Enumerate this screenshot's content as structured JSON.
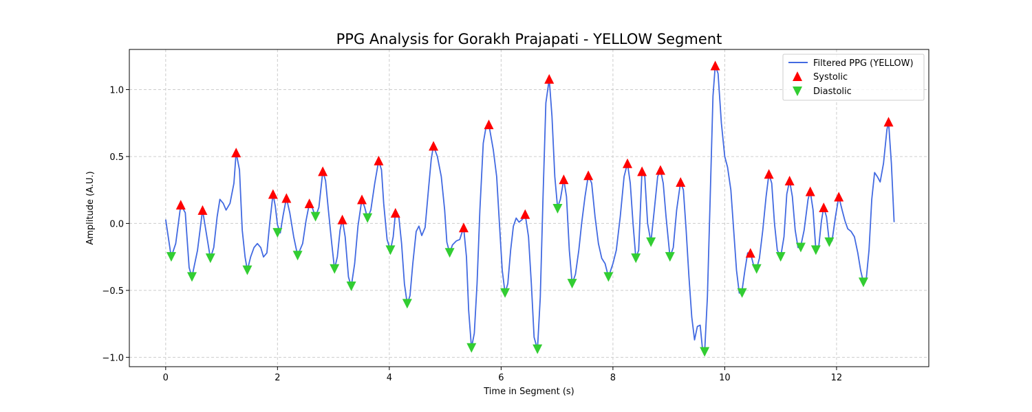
{
  "chart_data": {
    "type": "line",
    "title": "PPG Analysis for Gorakh Prajapati - YELLOW Segment",
    "xlabel": "Time in Segment (s)",
    "ylabel": "Amplitude (A.U.)",
    "xlim": [
      -0.65,
      13.65
    ],
    "ylim": [
      -1.07,
      1.3
    ],
    "x_ticks": [
      0,
      2,
      4,
      6,
      8,
      10,
      12
    ],
    "y_ticks": [
      -1.0,
      -0.5,
      0.0,
      0.5,
      1.0
    ],
    "x_tick_labels": [
      "0",
      "2",
      "4",
      "6",
      "8",
      "10",
      "12"
    ],
    "y_tick_labels": [
      "−1.0",
      "−0.5",
      "0.0",
      "0.5",
      "1.0"
    ],
    "grid": true,
    "legend_position": "top-right",
    "legend": [
      "Filtered PPG (YELLOW)",
      "Systolic",
      "Diastolic"
    ],
    "colors": {
      "line": "#4169e1",
      "systolic": "#ff0000",
      "diastolic": "#32cd32"
    },
    "series": [
      {
        "name": "Filtered PPG (YELLOW)",
        "marker": "line",
        "points": [
          [
            0.0,
            0.03
          ],
          [
            0.1,
            -0.25
          ],
          [
            0.18,
            -0.15
          ],
          [
            0.27,
            0.14
          ],
          [
            0.35,
            0.08
          ],
          [
            0.42,
            -0.33
          ],
          [
            0.47,
            -0.4
          ],
          [
            0.57,
            -0.2
          ],
          [
            0.66,
            0.1
          ],
          [
            0.73,
            -0.08
          ],
          [
            0.8,
            -0.26
          ],
          [
            0.86,
            -0.18
          ],
          [
            0.92,
            0.05
          ],
          [
            0.97,
            0.18
          ],
          [
            1.03,
            0.15
          ],
          [
            1.08,
            0.1
          ],
          [
            1.15,
            0.15
          ],
          [
            1.22,
            0.3
          ],
          [
            1.26,
            0.53
          ],
          [
            1.32,
            0.4
          ],
          [
            1.37,
            -0.05
          ],
          [
            1.42,
            -0.25
          ],
          [
            1.46,
            -0.35
          ],
          [
            1.52,
            -0.25
          ],
          [
            1.58,
            -0.18
          ],
          [
            1.64,
            -0.15
          ],
          [
            1.7,
            -0.18
          ],
          [
            1.75,
            -0.25
          ],
          [
            1.81,
            -0.22
          ],
          [
            1.86,
            0.0
          ],
          [
            1.92,
            0.22
          ],
          [
            1.96,
            0.13
          ],
          [
            2.0,
            -0.01
          ],
          [
            2.05,
            -0.07
          ],
          [
            2.1,
            0.06
          ],
          [
            2.16,
            0.19
          ],
          [
            2.22,
            0.08
          ],
          [
            2.29,
            -0.1
          ],
          [
            2.36,
            -0.24
          ],
          [
            2.45,
            -0.15
          ],
          [
            2.51,
            0.02
          ],
          [
            2.57,
            0.15
          ],
          [
            2.62,
            0.12
          ],
          [
            2.68,
            0.05
          ],
          [
            2.74,
            0.12
          ],
          [
            2.81,
            0.39
          ],
          [
            2.86,
            0.32
          ],
          [
            2.91,
            0.1
          ],
          [
            2.97,
            -0.15
          ],
          [
            3.02,
            -0.34
          ],
          [
            3.07,
            -0.25
          ],
          [
            3.12,
            -0.05
          ],
          [
            3.16,
            0.03
          ],
          [
            3.21,
            -0.1
          ],
          [
            3.27,
            -0.4
          ],
          [
            3.32,
            -0.47
          ],
          [
            3.38,
            -0.3
          ],
          [
            3.44,
            -0.02
          ],
          [
            3.51,
            0.18
          ],
          [
            3.56,
            0.12
          ],
          [
            3.61,
            0.04
          ],
          [
            3.67,
            0.1
          ],
          [
            3.74,
            0.3
          ],
          [
            3.81,
            0.47
          ],
          [
            3.86,
            0.4
          ],
          [
            3.9,
            0.15
          ],
          [
            3.96,
            -0.12
          ],
          [
            4.02,
            -0.2
          ],
          [
            4.07,
            -0.1
          ],
          [
            4.11,
            0.08
          ],
          [
            4.17,
            0.05
          ],
          [
            4.22,
            -0.15
          ],
          [
            4.27,
            -0.45
          ],
          [
            4.32,
            -0.6
          ],
          [
            4.37,
            -0.54
          ],
          [
            4.42,
            -0.3
          ],
          [
            4.48,
            -0.06
          ],
          [
            4.53,
            -0.02
          ],
          [
            4.58,
            -0.09
          ],
          [
            4.64,
            -0.03
          ],
          [
            4.7,
            0.25
          ],
          [
            4.75,
            0.48
          ],
          [
            4.79,
            0.58
          ],
          [
            4.86,
            0.5
          ],
          [
            4.93,
            0.35
          ],
          [
            4.99,
            0.1
          ],
          [
            5.03,
            -0.14
          ],
          [
            5.08,
            -0.22
          ],
          [
            5.13,
            -0.16
          ],
          [
            5.2,
            -0.13
          ],
          [
            5.26,
            -0.12
          ],
          [
            5.33,
            -0.03
          ],
          [
            5.38,
            -0.25
          ],
          [
            5.42,
            -0.65
          ],
          [
            5.47,
            -0.93
          ],
          [
            5.52,
            -0.82
          ],
          [
            5.57,
            -0.45
          ],
          [
            5.62,
            0.1
          ],
          [
            5.68,
            0.6
          ],
          [
            5.73,
            0.72
          ],
          [
            5.78,
            0.74
          ],
          [
            5.86,
            0.55
          ],
          [
            5.92,
            0.35
          ],
          [
            5.97,
            0.0
          ],
          [
            6.02,
            -0.35
          ],
          [
            6.07,
            -0.52
          ],
          [
            6.12,
            -0.45
          ],
          [
            6.17,
            -0.2
          ],
          [
            6.22,
            -0.02
          ],
          [
            6.27,
            0.04
          ],
          [
            6.32,
            0.01
          ],
          [
            6.38,
            0.03
          ],
          [
            6.43,
            0.07
          ],
          [
            6.49,
            -0.1
          ],
          [
            6.54,
            -0.45
          ],
          [
            6.59,
            -0.85
          ],
          [
            6.65,
            -0.94
          ],
          [
            6.7,
            -0.55
          ],
          [
            6.75,
            0.2
          ],
          [
            6.8,
            0.9
          ],
          [
            6.86,
            1.08
          ],
          [
            6.91,
            0.8
          ],
          [
            6.96,
            0.35
          ],
          [
            7.01,
            0.12
          ],
          [
            7.06,
            0.18
          ],
          [
            7.12,
            0.33
          ],
          [
            7.17,
            0.2
          ],
          [
            7.22,
            -0.2
          ],
          [
            7.27,
            -0.45
          ],
          [
            7.33,
            -0.38
          ],
          [
            7.39,
            -0.2
          ],
          [
            7.44,
            0.0
          ],
          [
            7.5,
            0.2
          ],
          [
            7.56,
            0.36
          ],
          [
            7.62,
            0.3
          ],
          [
            7.68,
            0.05
          ],
          [
            7.74,
            -0.15
          ],
          [
            7.8,
            -0.26
          ],
          [
            7.86,
            -0.3
          ],
          [
            7.92,
            -0.4
          ],
          [
            8.0,
            -0.3
          ],
          [
            8.06,
            -0.2
          ],
          [
            8.13,
            0.05
          ],
          [
            8.2,
            0.35
          ],
          [
            8.26,
            0.45
          ],
          [
            8.31,
            0.3
          ],
          [
            8.36,
            0.0
          ],
          [
            8.41,
            -0.26
          ],
          [
            8.46,
            -0.2
          ],
          [
            8.52,
            0.39
          ],
          [
            8.57,
            0.35
          ],
          [
            8.62,
            0.0
          ],
          [
            8.68,
            -0.14
          ],
          [
            8.74,
            0.1
          ],
          [
            8.8,
            0.35
          ],
          [
            8.85,
            0.4
          ],
          [
            8.9,
            0.3
          ],
          [
            8.95,
            0.05
          ],
          [
            9.02,
            -0.25
          ],
          [
            9.08,
            -0.18
          ],
          [
            9.14,
            0.1
          ],
          [
            9.21,
            0.31
          ],
          [
            9.26,
            0.25
          ],
          [
            9.31,
            -0.05
          ],
          [
            9.36,
            -0.4
          ],
          [
            9.41,
            -0.7
          ],
          [
            9.46,
            -0.87
          ],
          [
            9.51,
            -0.77
          ],
          [
            9.56,
            -0.76
          ],
          [
            9.6,
            -0.93
          ],
          [
            9.64,
            -0.96
          ],
          [
            9.69,
            -0.55
          ],
          [
            9.74,
            0.2
          ],
          [
            9.79,
            0.95
          ],
          [
            9.83,
            1.18
          ],
          [
            9.88,
            1.12
          ],
          [
            9.94,
            0.75
          ],
          [
            10.0,
            0.5
          ],
          [
            10.05,
            0.42
          ],
          [
            10.11,
            0.25
          ],
          [
            10.16,
            -0.05
          ],
          [
            10.21,
            -0.35
          ],
          [
            10.26,
            -0.52
          ],
          [
            10.31,
            -0.5
          ],
          [
            10.36,
            -0.35
          ],
          [
            10.41,
            -0.22
          ],
          [
            10.46,
            -0.22
          ],
          [
            10.52,
            -0.32
          ],
          [
            10.57,
            -0.34
          ],
          [
            10.62,
            -0.26
          ],
          [
            10.68,
            -0.05
          ],
          [
            10.74,
            0.2
          ],
          [
            10.79,
            0.37
          ],
          [
            10.84,
            0.3
          ],
          [
            10.89,
            0.0
          ],
          [
            10.94,
            -0.2
          ],
          [
            11.0,
            -0.25
          ],
          [
            11.06,
            -0.1
          ],
          [
            11.11,
            0.22
          ],
          [
            11.16,
            0.32
          ],
          [
            11.21,
            0.2
          ],
          [
            11.26,
            -0.05
          ],
          [
            11.31,
            -0.18
          ],
          [
            11.36,
            -0.17
          ],
          [
            11.42,
            -0.05
          ],
          [
            11.49,
            0.18
          ],
          [
            11.53,
            0.24
          ],
          [
            11.58,
            0.1
          ],
          [
            11.63,
            -0.2
          ],
          [
            11.68,
            -0.18
          ],
          [
            11.73,
            0.02
          ],
          [
            11.77,
            0.12
          ],
          [
            11.82,
            0.05
          ],
          [
            11.87,
            -0.14
          ],
          [
            11.92,
            -0.13
          ],
          [
            11.98,
            0.05
          ],
          [
            12.04,
            0.2
          ],
          [
            12.1,
            0.1
          ],
          [
            12.15,
            0.02
          ],
          [
            12.2,
            -0.04
          ],
          [
            12.26,
            -0.06
          ],
          [
            12.32,
            -0.1
          ],
          [
            12.38,
            -0.22
          ],
          [
            12.43,
            -0.35
          ],
          [
            12.48,
            -0.44
          ],
          [
            12.53,
            -0.42
          ],
          [
            12.58,
            -0.2
          ],
          [
            12.63,
            0.18
          ],
          [
            12.68,
            0.38
          ],
          [
            12.73,
            0.35
          ],
          [
            12.78,
            0.31
          ],
          [
            12.84,
            0.45
          ],
          [
            12.9,
            0.7
          ],
          [
            12.93,
            0.76
          ],
          [
            12.98,
            0.45
          ],
          [
            13.03,
            0.01
          ]
        ]
      },
      {
        "name": "Systolic",
        "marker": "triangle-up",
        "points": [
          [
            0.27,
            0.14
          ],
          [
            0.66,
            0.1
          ],
          [
            1.26,
            0.53
          ],
          [
            1.92,
            0.22
          ],
          [
            2.16,
            0.19
          ],
          [
            2.57,
            0.15
          ],
          [
            2.81,
            0.39
          ],
          [
            3.16,
            0.03
          ],
          [
            3.51,
            0.18
          ],
          [
            3.81,
            0.47
          ],
          [
            4.11,
            0.08
          ],
          [
            4.79,
            0.58
          ],
          [
            5.33,
            -0.03
          ],
          [
            5.78,
            0.74
          ],
          [
            6.43,
            0.07
          ],
          [
            6.86,
            1.08
          ],
          [
            7.12,
            0.33
          ],
          [
            7.56,
            0.36
          ],
          [
            8.26,
            0.45
          ],
          [
            8.52,
            0.39
          ],
          [
            8.85,
            0.4
          ],
          [
            9.21,
            0.31
          ],
          [
            9.83,
            1.18
          ],
          [
            10.46,
            -0.22
          ],
          [
            10.79,
            0.37
          ],
          [
            11.16,
            0.32
          ],
          [
            11.53,
            0.24
          ],
          [
            11.77,
            0.12
          ],
          [
            12.04,
            0.2
          ],
          [
            12.93,
            0.76
          ]
        ]
      },
      {
        "name": "Diastolic",
        "marker": "triangle-down",
        "points": [
          [
            0.1,
            -0.25
          ],
          [
            0.47,
            -0.4
          ],
          [
            0.8,
            -0.26
          ],
          [
            1.46,
            -0.35
          ],
          [
            2.0,
            -0.07
          ],
          [
            2.36,
            -0.24
          ],
          [
            2.68,
            0.05
          ],
          [
            3.02,
            -0.34
          ],
          [
            3.32,
            -0.47
          ],
          [
            3.61,
            0.04
          ],
          [
            4.02,
            -0.2
          ],
          [
            4.32,
            -0.6
          ],
          [
            5.08,
            -0.22
          ],
          [
            5.47,
            -0.93
          ],
          [
            6.07,
            -0.52
          ],
          [
            6.65,
            -0.94
          ],
          [
            7.01,
            0.11
          ],
          [
            7.27,
            -0.45
          ],
          [
            7.92,
            -0.4
          ],
          [
            8.41,
            -0.26
          ],
          [
            8.68,
            -0.14
          ],
          [
            9.02,
            -0.25
          ],
          [
            9.64,
            -0.96
          ],
          [
            10.31,
            -0.52
          ],
          [
            10.57,
            -0.34
          ],
          [
            11.0,
            -0.25
          ],
          [
            11.36,
            -0.18
          ],
          [
            11.63,
            -0.2
          ],
          [
            11.87,
            -0.14
          ],
          [
            12.48,
            -0.44
          ]
        ]
      }
    ]
  }
}
